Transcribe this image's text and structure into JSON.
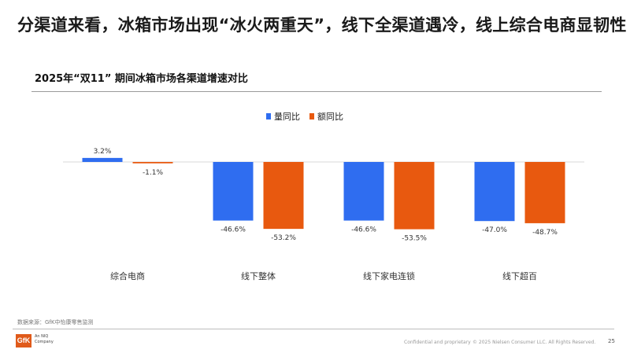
{
  "headline": "分渠道来看，冰箱市场出现“冰火两重天”，线下全渠道遇冷，线上综合电商显韧性",
  "footer": {
    "source": "数据来源：GfK中怡康零售监测",
    "logo_text": "GfK",
    "logo_tagline": "An NIQ\nCompany",
    "confidential": "Confidential and proprietary",
    "copyright": "© 2025 Nielsen Consumer LLC. All Rights Reserved.",
    "page_number": "25"
  },
  "colors": {
    "volume": "#2f6df0",
    "value": "#e8590f"
  },
  "chart_data": {
    "type": "bar",
    "title": "2025年“双11” 期间冰箱市场各渠道增速对比",
    "categories": [
      "综合电商",
      "线下整体",
      "线下家电连锁",
      "线下超百"
    ],
    "series": [
      {
        "name": "量同比",
        "values": [
          3.2,
          -46.6,
          -46.6,
          -47.0
        ],
        "labels": [
          "3.2%",
          "-46.6%",
          "-46.6%",
          "-47.0%"
        ]
      },
      {
        "name": "额同比",
        "values": [
          -1.1,
          -53.2,
          -53.5,
          -48.7
        ],
        "labels": [
          "-1.1%",
          "-53.2%",
          "-53.5%",
          "-48.7%"
        ]
      }
    ],
    "legend_position": "top-center",
    "grid": false
  }
}
